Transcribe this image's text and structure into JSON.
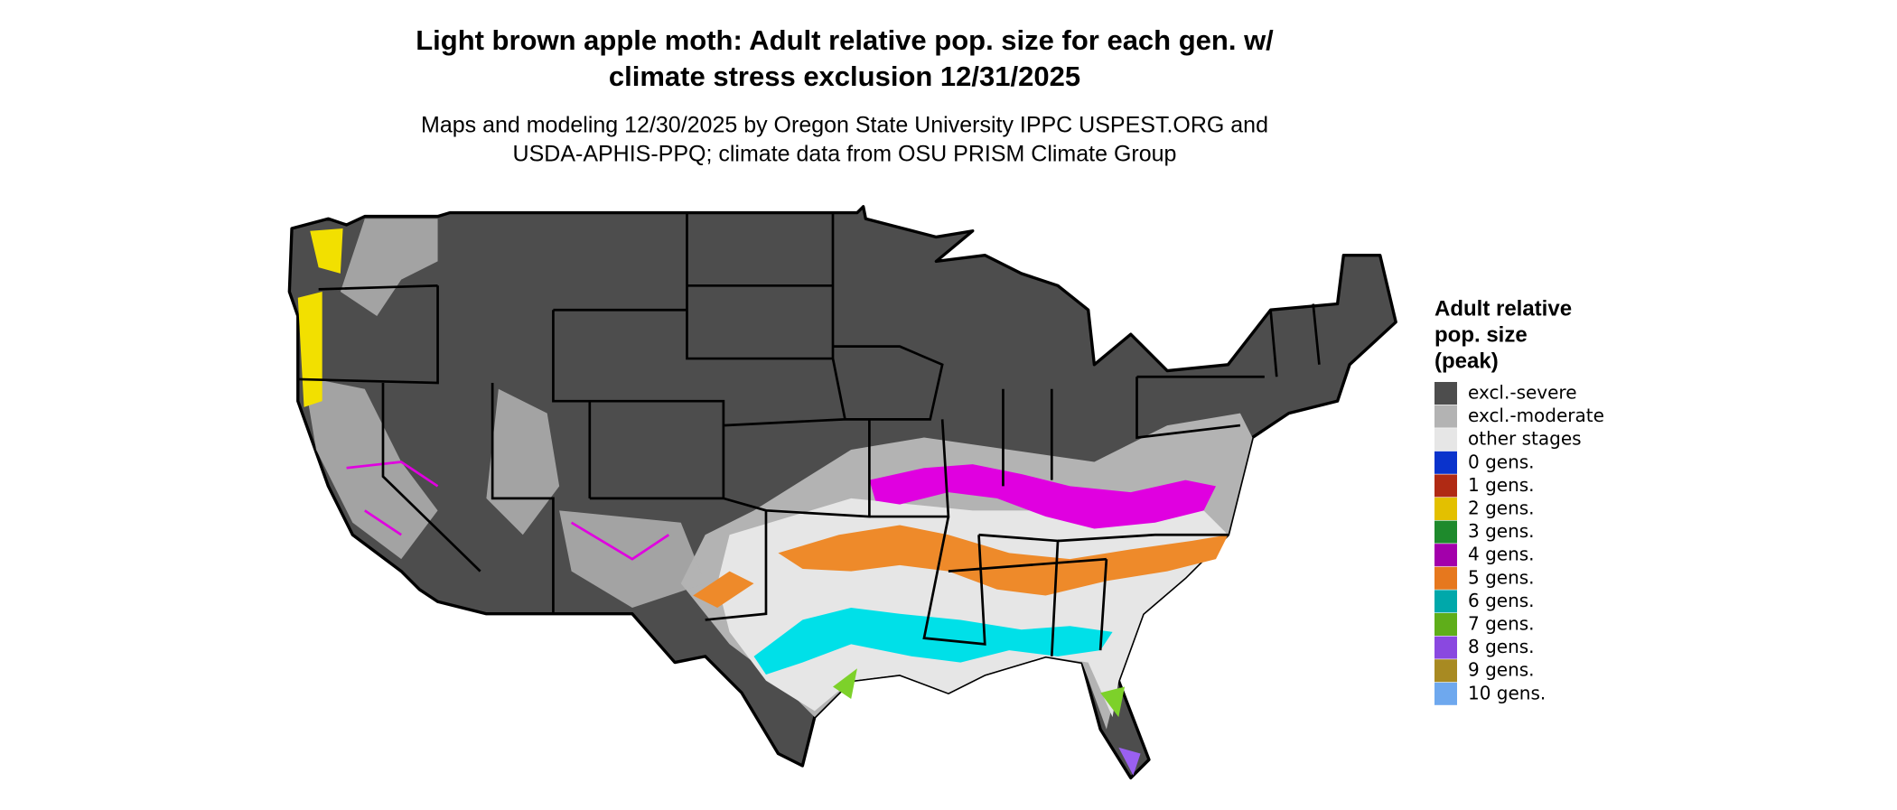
{
  "map": {
    "title_lines": [
      "Light brown apple moth: Adult relative pop. size for each gen. w/",
      "climate stress exclusion 12/31/2025"
    ],
    "subtitle_lines": [
      "Maps and modeling 12/30/2025 by Oregon State University IPPC USPEST.ORG and",
      "USDA-APHIS-PPQ; climate data from OSU PRISM Climate Group"
    ],
    "legend": {
      "title_lines": [
        "Adult relative",
        "pop. size",
        "(peak)"
      ],
      "items": [
        {
          "label": "excl.-severe",
          "color": "#4d4d4d"
        },
        {
          "label": "excl.-moderate",
          "color": "#b3b3b3"
        },
        {
          "label": "other stages",
          "color": "#e6e6e6"
        },
        {
          "label": "0 gens.",
          "color": "#0a33cc"
        },
        {
          "label": "1 gens.",
          "color": "#b02a14"
        },
        {
          "label": "2 gens.",
          "color": "#e3c000"
        },
        {
          "label": "3 gens.",
          "color": "#1e8a2c"
        },
        {
          "label": "4 gens.",
          "color": "#a300ab"
        },
        {
          "label": "5 gens.",
          "color": "#e6781e"
        },
        {
          "label": "6 gens.",
          "color": "#00a8aa"
        },
        {
          "label": "7 gens.",
          "color": "#5fae1a"
        },
        {
          "label": "8 gens.",
          "color": "#8a48e0"
        },
        {
          "label": "9 gens.",
          "color": "#a88a22"
        },
        {
          "label": "10 gens.",
          "color": "#6ea8ee"
        }
      ]
    }
  }
}
